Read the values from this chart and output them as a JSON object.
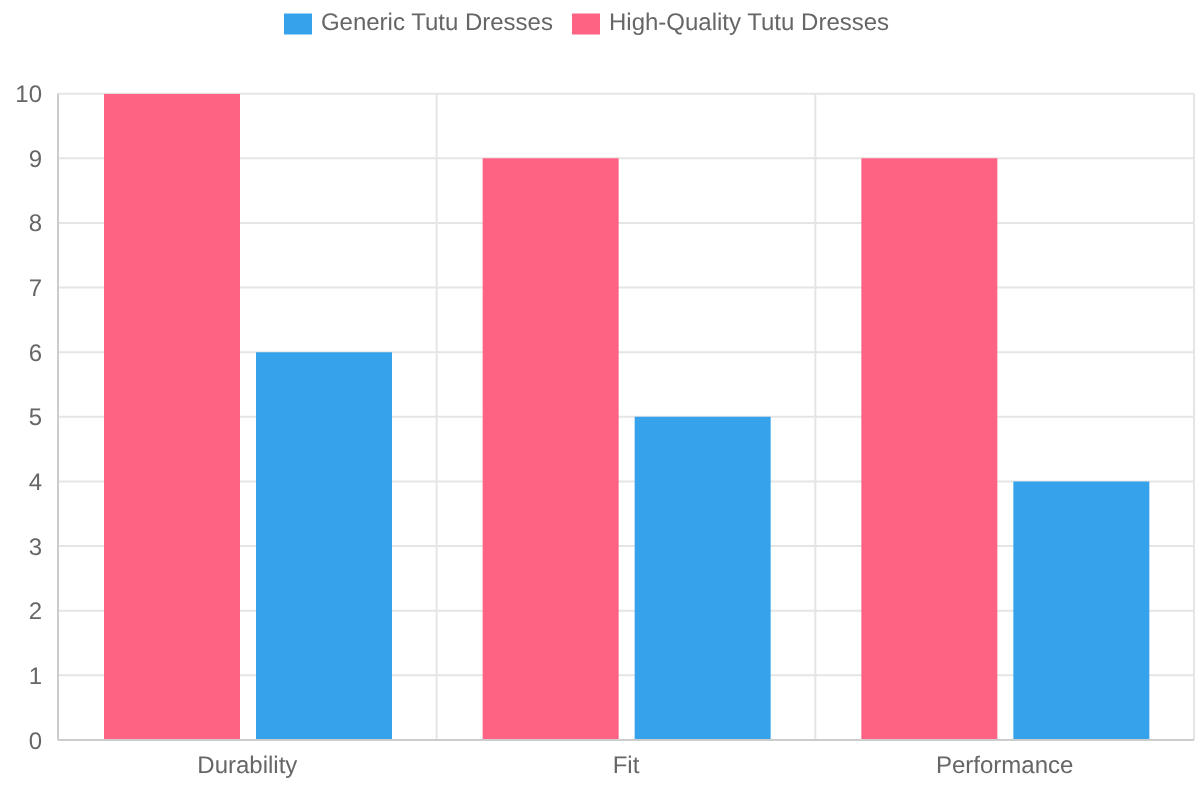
{
  "chart_data": {
    "type": "bar",
    "categories": [
      "Durability",
      "Fit",
      "Performance"
    ],
    "series": [
      {
        "name": "High-Quality Tutu Dresses",
        "color": "#ff6384",
        "values": [
          10,
          9,
          9
        ]
      },
      {
        "name": "Generic Tutu Dresses",
        "color": "#36a2eb",
        "values": [
          6,
          5,
          4
        ]
      }
    ],
    "ylim": [
      0,
      10
    ],
    "yticks": [
      0,
      1,
      2,
      3,
      4,
      5,
      6,
      7,
      8,
      9,
      10
    ],
    "grid": true,
    "legend": "top"
  }
}
